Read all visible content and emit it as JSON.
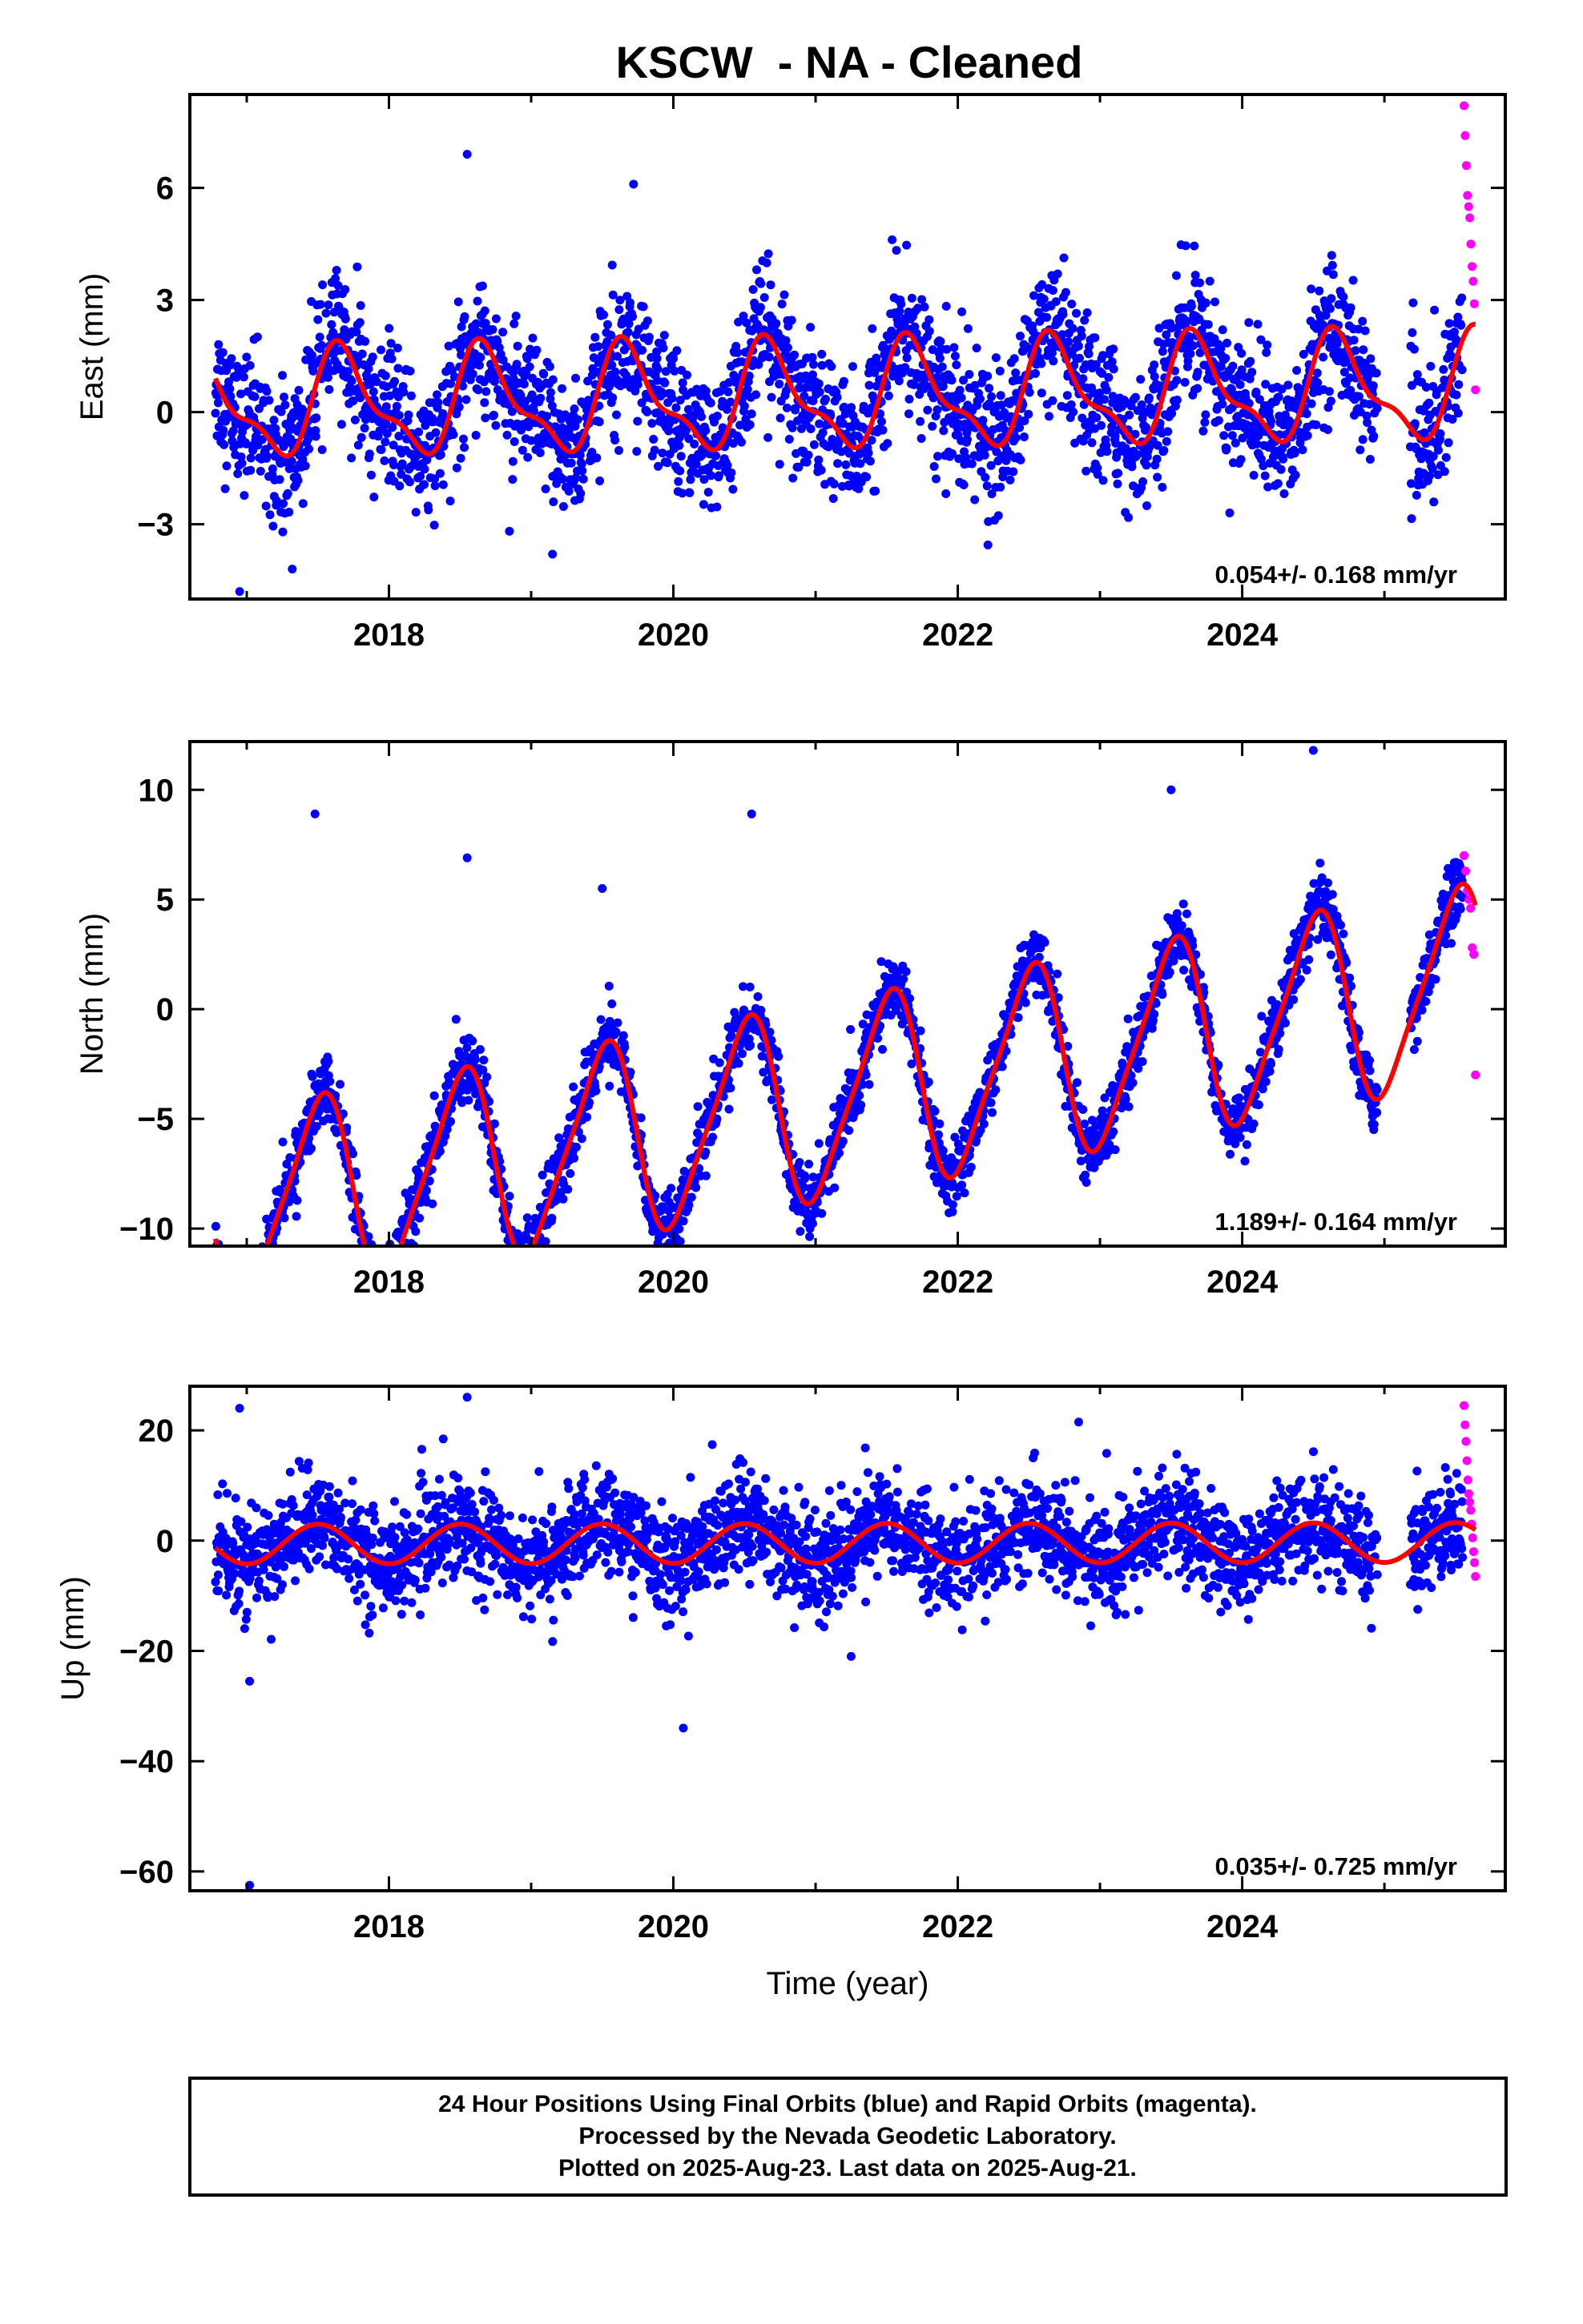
{
  "title": "KSCW  - NA - Cleaned",
  "xlabel": "Time (year)",
  "caption": [
    "24 Hour Positions Using Final Orbits (blue) and Rapid Orbits (magenta).",
    "Processed by the Nevada Geodetic Laboratory.",
    "Plotted on 2025-Aug-23. Last data on 2025-Aug-21."
  ],
  "colors": {
    "final_orbits": "#0000ff",
    "rapid_orbits": "#ff00ff",
    "model_fit": "#ff0000",
    "frame": "#000000"
  },
  "chart_data": [
    {
      "type": "scatter",
      "ylabel": "East (mm)",
      "rate_label": "0.054+/- 0.168 mm/yr",
      "xlim": [
        2016.6,
        2025.85
      ],
      "ylim": [
        -5,
        8.5
      ],
      "x_ticks": [
        2018,
        2020,
        2022,
        2024
      ],
      "y_ticks": [
        -3,
        0,
        3,
        6
      ],
      "y_tick_labels": [
        "−3",
        "0",
        "3",
        "6"
      ],
      "data_start": 2016.78,
      "data_end": 2025.55,
      "rapid_start": 2025.56,
      "rapid_end": 2025.64,
      "gaps": [
        [
          2024.95,
          2025.18
        ]
      ],
      "model": {
        "offset": 0.4,
        "trend": 0.054,
        "annual_amp": 1.3,
        "annual_phase_year": 2016.68,
        "semiannual_amp": 0.5,
        "semiannual_phase_year": 2016.6
      },
      "scatter_sd": 0.9,
      "rapid_values": [
        8.2,
        7.4,
        6.6,
        5.8,
        5.5,
        5.2,
        4.5,
        3.9,
        3.5,
        2.9,
        0.6
      ],
      "outliers": [
        [
          2016.95,
          -4.8
        ],
        [
          2017.32,
          -4.2
        ],
        [
          2018.55,
          6.9
        ],
        [
          2019.72,
          6.1
        ],
        [
          2019.15,
          -3.8
        ]
      ]
    },
    {
      "type": "scatter",
      "ylabel": "North (mm)",
      "rate_label": "1.189+/- 0.164 mm/yr",
      "xlim": [
        2016.6,
        2025.85
      ],
      "ylim": [
        -10.8,
        12.2
      ],
      "x_ticks": [
        2018,
        2020,
        2022,
        2024
      ],
      "y_ticks": [
        -10,
        -5,
        0,
        5,
        10
      ],
      "y_tick_labels": [
        "−10",
        "−5",
        "0",
        "5",
        "10"
      ],
      "data_start": 2016.78,
      "data_end": 2025.55,
      "rapid_start": 2025.56,
      "rapid_end": 2025.64,
      "gaps": [
        [
          2024.95,
          2025.18
        ]
      ],
      "model": {
        "offset": -4.3,
        "trend": 1.189,
        "annual_amp": 4.3,
        "annual_phase_year": 2016.5,
        "semiannual_amp": 0.8,
        "semiannual_phase_year": 2016.62
      },
      "scatter_sd": 0.75,
      "rapid_values": [
        7.0,
        6.3,
        5.4,
        5.0,
        4.6,
        2.8,
        2.5,
        -3.0
      ],
      "outliers": [
        [
          2017.48,
          8.9
        ],
        [
          2018.55,
          6.9
        ],
        [
          2019.5,
          5.5
        ],
        [
          2020.55,
          8.9
        ],
        [
          2023.5,
          10.0
        ],
        [
          2024.5,
          11.8
        ]
      ]
    },
    {
      "type": "scatter",
      "ylabel": "Up (mm)",
      "rate_label": "0.035+/- 0.725 mm/yr",
      "xlim": [
        2016.6,
        2025.85
      ],
      "ylim": [
        -63.5,
        28
      ],
      "x_ticks": [
        2018,
        2020,
        2022,
        2024
      ],
      "y_ticks": [
        -60,
        -40,
        -20,
        0,
        20
      ],
      "y_tick_labels": [
        "−60",
        "−40",
        "−20",
        "0",
        "20"
      ],
      "data_start": 2016.78,
      "data_end": 2025.55,
      "rapid_start": 2025.56,
      "rapid_end": 2025.64,
      "gaps": [
        [
          2024.95,
          2025.18
        ]
      ],
      "model": {
        "offset": -0.5,
        "trend": 0.035,
        "annual_amp": 3.6,
        "annual_phase_year": 2016.5,
        "semiannual_amp": 0.0,
        "semiannual_phase_year": 2016.5
      },
      "scatter_sd": 4.6,
      "rapid_values": [
        24.5,
        21.0,
        18.0,
        14.5,
        11.0,
        8.5,
        7.0,
        5.5,
        3.0,
        0.5,
        -2.0,
        -4.0,
        -6.5
      ],
      "outliers": [
        [
          2016.95,
          24.0
        ],
        [
          2018.55,
          26.0
        ],
        [
          2022.85,
          21.5
        ],
        [
          2017.02,
          -25.5
        ],
        [
          2017.02,
          -62.5
        ],
        [
          2020.07,
          -34.0
        ],
        [
          2021.25,
          -21.0
        ]
      ]
    }
  ]
}
